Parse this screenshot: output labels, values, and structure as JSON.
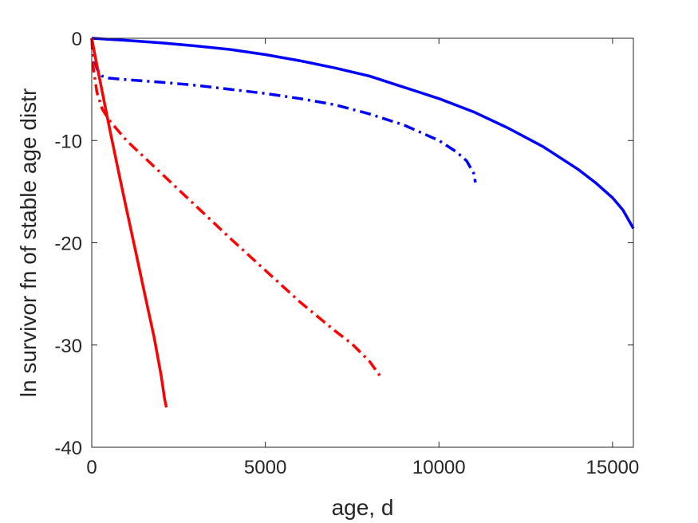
{
  "chart_data": {
    "type": "line",
    "title": "",
    "xlabel": "age, d",
    "ylabel": "ln survivor fn of stable age distr",
    "xlim": [
      0,
      15600
    ],
    "ylim": [
      -40,
      0
    ],
    "xticks": [
      0,
      5000,
      10000,
      15000
    ],
    "xtick_labels": [
      "0",
      "5000",
      "10000",
      "15000"
    ],
    "yticks": [
      0,
      -10,
      -20,
      -30,
      -40
    ],
    "ytick_labels": [
      "0",
      "-10",
      "-20",
      "-30",
      "-40"
    ],
    "grid": false,
    "box": true,
    "series": [
      {
        "color": "#0000FF",
        "style": "solid",
        "points": [
          [
            0,
            0
          ],
          [
            1000,
            -0.2
          ],
          [
            2000,
            -0.45
          ],
          [
            3000,
            -0.75
          ],
          [
            4000,
            -1.1
          ],
          [
            5000,
            -1.6
          ],
          [
            6000,
            -2.2
          ],
          [
            7000,
            -2.9
          ],
          [
            8000,
            -3.7
          ],
          [
            9000,
            -4.8
          ],
          [
            10000,
            -5.9
          ],
          [
            11000,
            -7.2
          ],
          [
            12000,
            -8.8
          ],
          [
            13000,
            -10.6
          ],
          [
            14000,
            -12.8
          ],
          [
            14500,
            -14.1
          ],
          [
            15000,
            -15.6
          ],
          [
            15300,
            -16.8
          ],
          [
            15500,
            -18.0
          ],
          [
            15600,
            -18.6
          ]
        ]
      },
      {
        "color": "#0000FF",
        "style": "dashdot",
        "points": [
          [
            0,
            0
          ],
          [
            50,
            -1.5
          ],
          [
            150,
            -3.0
          ],
          [
            300,
            -3.7
          ],
          [
            500,
            -3.9
          ],
          [
            1000,
            -4.05
          ],
          [
            2000,
            -4.3
          ],
          [
            3000,
            -4.6
          ],
          [
            4000,
            -5.0
          ],
          [
            5000,
            -5.4
          ],
          [
            6000,
            -5.9
          ],
          [
            7000,
            -6.5
          ],
          [
            8000,
            -7.4
          ],
          [
            9000,
            -8.5
          ],
          [
            10000,
            -10.0
          ],
          [
            10500,
            -11.1
          ],
          [
            10800,
            -12.0
          ],
          [
            11000,
            -13.2
          ],
          [
            11050,
            -14.1
          ]
        ]
      },
      {
        "color": "#FF0000",
        "style": "solid",
        "points": [
          [
            0,
            0
          ],
          [
            100,
            -1.8
          ],
          [
            300,
            -5.2
          ],
          [
            500,
            -8.6
          ],
          [
            800,
            -13.5
          ],
          [
            1000,
            -16.7
          ],
          [
            1300,
            -21.4
          ],
          [
            1500,
            -24.6
          ],
          [
            1800,
            -29.3
          ],
          [
            2000,
            -33.0
          ],
          [
            2100,
            -35.3
          ],
          [
            2150,
            -36.1
          ]
        ]
      },
      {
        "color": "#FF0000",
        "style": "dashdot",
        "points": [
          [
            0,
            0
          ],
          [
            50,
            -3.0
          ],
          [
            150,
            -5.3
          ],
          [
            300,
            -6.9
          ],
          [
            500,
            -8.0
          ],
          [
            1000,
            -10.0
          ],
          [
            2000,
            -13.2
          ],
          [
            3000,
            -16.4
          ],
          [
            4000,
            -19.6
          ],
          [
            5000,
            -22.7
          ],
          [
            6000,
            -25.8
          ],
          [
            7000,
            -28.6
          ],
          [
            7500,
            -29.9
          ],
          [
            8000,
            -31.6
          ],
          [
            8300,
            -33.0
          ]
        ]
      }
    ]
  }
}
